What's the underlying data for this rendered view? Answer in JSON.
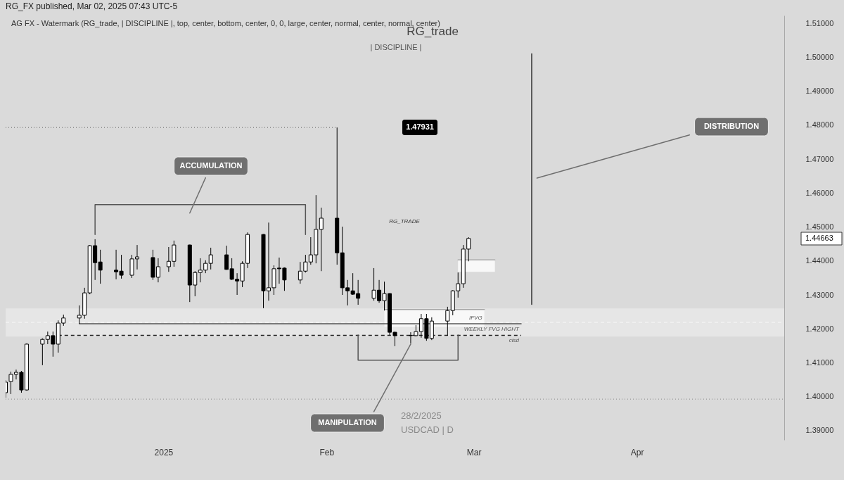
{
  "chart_data": {
    "type": "candlestick",
    "title": "RG_FX published, Mar 02, 2025 07:43 UTC-5",
    "x": [
      "2024-12-02",
      "2024-12-03",
      "2024-12-04",
      "2024-12-05",
      "2024-12-06",
      "2024-12-09",
      "2024-12-10",
      "2024-12-11",
      "2024-12-12",
      "2024-12-13",
      "2024-12-16",
      "2024-12-17",
      "2024-12-18",
      "2024-12-19",
      "2024-12-20",
      "2024-12-23",
      "2024-12-24",
      "2024-12-26",
      "2024-12-27",
      "2024-12-30",
      "2024-12-31",
      "2025-01-02",
      "2025-01-03",
      "2025-01-06",
      "2025-01-07",
      "2025-01-08",
      "2025-01-09",
      "2025-01-10",
      "2025-01-13",
      "2025-01-14",
      "2025-01-15",
      "2025-01-16",
      "2025-01-17",
      "2025-01-20",
      "2025-01-21",
      "2025-01-22",
      "2025-01-23",
      "2025-01-24",
      "2025-01-27",
      "2025-01-28",
      "2025-01-29",
      "2025-01-30",
      "2025-01-31",
      "2025-02-03",
      "2025-02-04",
      "2025-02-05",
      "2025-02-06",
      "2025-02-07",
      "2025-02-10",
      "2025-02-11",
      "2025-02-12",
      "2025-02-13",
      "2025-02-14",
      "2025-02-17",
      "2025-02-18",
      "2025-02-19",
      "2025-02-20",
      "2025-02-21",
      "2025-02-24",
      "2025-02-25",
      "2025-02-26",
      "2025-02-27",
      "2025-02-28"
    ],
    "ohlc": [
      [
        1.4012,
        1.4049,
        1.3997,
        1.4043
      ],
      [
        1.4045,
        1.4074,
        1.4008,
        1.4066
      ],
      [
        1.4066,
        1.408,
        1.4051,
        1.4072
      ],
      [
        1.4072,
        1.4076,
        1.4012,
        1.402
      ],
      [
        1.402,
        1.4157,
        1.4018,
        1.4155
      ],
      [
        1.4155,
        1.4172,
        1.4093,
        1.4169
      ],
      [
        1.4169,
        1.4192,
        1.4155,
        1.418
      ],
      [
        1.418,
        1.4192,
        1.4118,
        1.4155
      ],
      [
        1.4155,
        1.4225,
        1.413,
        1.4217
      ],
      [
        1.4217,
        1.4242,
        1.4209,
        1.4232
      ],
      [
        1.4232,
        1.4269,
        1.4215,
        1.424
      ],
      [
        1.424,
        1.4321,
        1.423,
        1.4306
      ],
      [
        1.4306,
        1.4447,
        1.4302,
        1.4445
      ],
      [
        1.4445,
        1.4464,
        1.4344,
        1.4395
      ],
      [
        1.4397,
        1.4433,
        1.4333,
        1.4373
      ],
      [
        1.4373,
        1.4433,
        1.4346,
        1.4368
      ],
      [
        1.437,
        1.4418,
        1.4348,
        1.4358
      ],
      [
        1.4358,
        1.4418,
        1.435,
        1.4406
      ],
      [
        1.4406,
        1.4447,
        1.4375,
        1.4412
      ],
      [
        1.441,
        1.4433,
        1.4344,
        1.4352
      ],
      [
        1.4352,
        1.4408,
        1.4337,
        1.4383
      ],
      [
        1.4383,
        1.4441,
        1.4368,
        1.4399
      ],
      [
        1.4399,
        1.446,
        1.4383,
        1.4447
      ],
      [
        1.4447,
        1.4448,
        1.4279,
        1.4329
      ],
      [
        1.4329,
        1.437,
        1.4296,
        1.4366
      ],
      [
        1.4366,
        1.4408,
        1.4337,
        1.4373
      ],
      [
        1.4373,
        1.4402,
        1.4364,
        1.4393
      ],
      [
        1.4393,
        1.4439,
        1.4375,
        1.4418
      ],
      [
        1.4418,
        1.4445,
        1.4374,
        1.4375
      ],
      [
        1.4377,
        1.4408,
        1.4344,
        1.4346
      ],
      [
        1.4346,
        1.4364,
        1.43,
        1.4341
      ],
      [
        1.4341,
        1.4399,
        1.4323,
        1.4393
      ],
      [
        1.4393,
        1.4484,
        1.4379,
        1.4478
      ],
      [
        1.4478,
        1.4479,
        1.4261,
        1.4312
      ],
      [
        1.4312,
        1.4513,
        1.4283,
        1.4321
      ],
      [
        1.4321,
        1.4387,
        1.43,
        1.4377
      ],
      [
        1.4379,
        1.441,
        1.4333,
        1.4377
      ],
      [
        1.4379,
        1.4381,
        1.4312,
        1.4344
      ],
      [
        1.4344,
        1.4397,
        1.4333,
        1.437
      ],
      [
        1.437,
        1.4418,
        1.4366,
        1.4397
      ],
      [
        1.4397,
        1.447,
        1.4389,
        1.4418
      ],
      [
        1.4418,
        1.4594,
        1.4393,
        1.4493
      ],
      [
        1.4493,
        1.4557,
        1.437,
        1.4526
      ],
      [
        1.4526,
        1.47931,
        1.4389,
        1.4424
      ],
      [
        1.4424,
        1.4501,
        1.43,
        1.4321
      ],
      [
        1.4321,
        1.4344,
        1.4269,
        1.4312
      ],
      [
        1.4312,
        1.4364,
        1.43,
        1.4302
      ],
      [
        1.4304,
        1.4344,
        1.4271,
        1.429
      ],
      [
        1.429,
        1.4379,
        1.4283,
        1.4314
      ],
      [
        1.4314,
        1.4344,
        1.4277,
        1.4283
      ],
      [
        1.4283,
        1.4339,
        1.4254,
        1.4304
      ],
      [
        1.4304,
        1.4305,
        1.4182,
        1.419
      ],
      [
        1.419,
        1.4192,
        1.4149,
        1.418
      ],
      [
        1.418,
        1.419,
        1.4157,
        1.4181
      ],
      [
        1.418,
        1.4211,
        1.4178,
        1.4192
      ],
      [
        1.4192,
        1.4244,
        1.4174,
        1.423
      ],
      [
        1.423,
        1.4244,
        1.4165,
        1.4172
      ],
      [
        1.4172,
        1.4234,
        1.4167,
        1.4223
      ],
      [
        1.4223,
        1.4265,
        1.418,
        1.4254
      ],
      [
        1.4254,
        1.4314,
        1.424,
        1.4312
      ],
      [
        1.4312,
        1.4366,
        1.4292,
        1.4333
      ],
      [
        1.4333,
        1.4447,
        1.4321,
        1.4435
      ],
      [
        1.4435,
        1.447,
        1.4399,
        1.44663
      ]
    ],
    "colors": [
      "#ffffff",
      "#ffffff",
      "#ffffff",
      "#000000",
      "#ffffff",
      "#ffffff",
      "#ffffff",
      "#000000",
      "#ffffff",
      "#ffffff",
      "#ffffff",
      "#ffffff",
      "#ffffff",
      "#000000",
      "#000000",
      "#000000",
      "#000000",
      "#ffffff",
      "#ffffff",
      "#000000",
      "#ffffff",
      "#ffffff",
      "#ffffff",
      "#000000",
      "#ffffff",
      "#ffffff",
      "#ffffff",
      "#ffffff",
      "#000000",
      "#000000",
      "#000000",
      "#ffffff",
      "#ffffff",
      "#000000",
      "#ffffff",
      "#ffffff",
      "#000000",
      "#000000",
      "#ffffff",
      "#ffffff",
      "#ffffff",
      "#ffffff",
      "#ffffff",
      "#000000",
      "#000000",
      "#000000",
      "#000000",
      "#000000",
      "#ffffff",
      "#000000",
      "#ffffff",
      "#000000",
      "#000000",
      "#ffffff",
      "#ffffff",
      "#ffffff",
      "#000000",
      "#ffffff",
      "#ffffff",
      "#ffffff",
      "#ffffff",
      "#ffffff",
      "#ffffff"
    ],
    "xlim": [
      "2024-12-02",
      "2025-04-29"
    ],
    "xticks": [
      {
        "value": "2025-01-01",
        "label": "2025"
      },
      {
        "value": "2025-02-01",
        "label": "Feb"
      },
      {
        "value": "2025-03-01",
        "label": "Mar"
      },
      {
        "value": "2025-04-01",
        "label": "Apr"
      }
    ],
    "ylim": [
      1.3873,
      1.5123
    ],
    "yticks": [
      {
        "value": 1.39,
        "label": "1.39000"
      },
      {
        "value": 1.4,
        "label": "1.40000"
      },
      {
        "value": 1.41,
        "label": "1.41000"
      },
      {
        "value": 1.42,
        "label": "1.42000"
      },
      {
        "value": 1.43,
        "label": "1.43000"
      },
      {
        "value": 1.44,
        "label": "1.44000"
      },
      {
        "value": 1.45,
        "label": "1.45000"
      },
      {
        "value": 1.46,
        "label": "1.46000"
      },
      {
        "value": 1.47,
        "label": "1.47000"
      },
      {
        "value": 1.48,
        "label": "1.48000"
      },
      {
        "value": 1.49,
        "label": "1.49000"
      },
      {
        "value": 1.5,
        "label": "1.50000"
      },
      {
        "value": 1.51,
        "label": "1.51000"
      }
    ],
    "bands": [
      {
        "axis": "y",
        "from": 1.4177,
        "to": 1.426,
        "color": "#e6e6e6"
      }
    ],
    "ref_lines": [
      {
        "axis": "y",
        "value": 1.4219,
        "color": "#f7f7f7",
        "line_style": "dashed"
      },
      {
        "axis": "y",
        "value": 1.3993,
        "color": "#8a8a8a",
        "line_style": "dotted"
      }
    ],
    "series": [
      {
        "type": "line",
        "name": "IFVG",
        "x": [
          "2025-02-12",
          "2025-03-03"
        ],
        "values": [
          1.4257,
          1.4257
        ],
        "lower": [
          1.4206,
          1.4206
        ],
        "upper": [
          1.4257,
          1.4257
        ],
        "color": "#a6a6a6"
      },
      {
        "type": "line",
        "x": [
          "2025-02-26",
          "2025-03-05"
        ],
        "values": [
          1.4403,
          1.4403
        ],
        "lower": [
          1.4368,
          1.4368
        ],
        "upper": [
          1.4403,
          1.4403
        ],
        "color": "#a6a6a6"
      },
      {
        "type": "line",
        "x": [
          "2024-12-02",
          "2025-02-03"
        ],
        "values": [
          1.47931,
          1.47931
        ],
        "color": "#8a8a8a",
        "line_style": "dotted"
      },
      {
        "type": "line",
        "name": "WEEKLY FVG HIGHT",
        "x": [
          "2024-12-16",
          "2025-03-10"
        ],
        "values": [
          1.4215,
          1.4215
        ],
        "color": "#555555"
      },
      {
        "type": "line",
        "name": "cisd",
        "x": [
          "2024-12-12",
          "2025-03-10"
        ],
        "values": [
          1.4181,
          1.4181
        ],
        "color": "#222222",
        "line_style": "dashed"
      },
      {
        "type": "line",
        "x": [
          "2024-12-19",
          "2024-12-19",
          "2025-01-28",
          "2025-01-28"
        ],
        "values": [
          1.4478,
          1.4566,
          1.4566,
          1.4478
        ],
        "color": "#555555"
      },
      {
        "type": "line",
        "x": [
          "2025-02-07",
          "2025-02-07",
          "2025-02-26",
          "2025-02-26"
        ],
        "values": [
          1.4182,
          1.4108,
          1.4108,
          1.4182
        ],
        "color": "#555555"
      },
      {
        "type": "line",
        "x": [
          "2025-03-12",
          "2025-03-12"
        ],
        "values": [
          1.4272,
          1.501
        ],
        "color": "#333333"
      },
      {
        "type": "line",
        "x": [
          "2025-01-09",
          "2025-01-06"
        ],
        "values": [
          1.4645,
          1.4541
        ],
        "color": "#6f6f6f"
      },
      {
        "type": "line",
        "x": [
          "2025-02-10",
          "2025-02-17"
        ],
        "values": [
          1.3956,
          1.4155
        ],
        "color": "#6f6f6f"
      },
      {
        "type": "line",
        "x": [
          "2025-04-11",
          "2025-03-13"
        ],
        "values": [
          1.4771,
          1.4644
        ],
        "color": "#6f6f6f"
      }
    ],
    "annotations": [
      "AG FX - Watermark (RG_trade, | DISCIPLINE |, top, center, bottom, center, 0, 0, large, center, normal, center, normal, center)",
      "RG_trade",
      "| DISCIPLINE |",
      "28/2/2025",
      "USDCAD | D",
      "RG_TRADE",
      "ACCUMULATION",
      "MANIPULATION",
      "DISTRIBUTION",
      "1.47931",
      "1.44663"
    ]
  }
}
